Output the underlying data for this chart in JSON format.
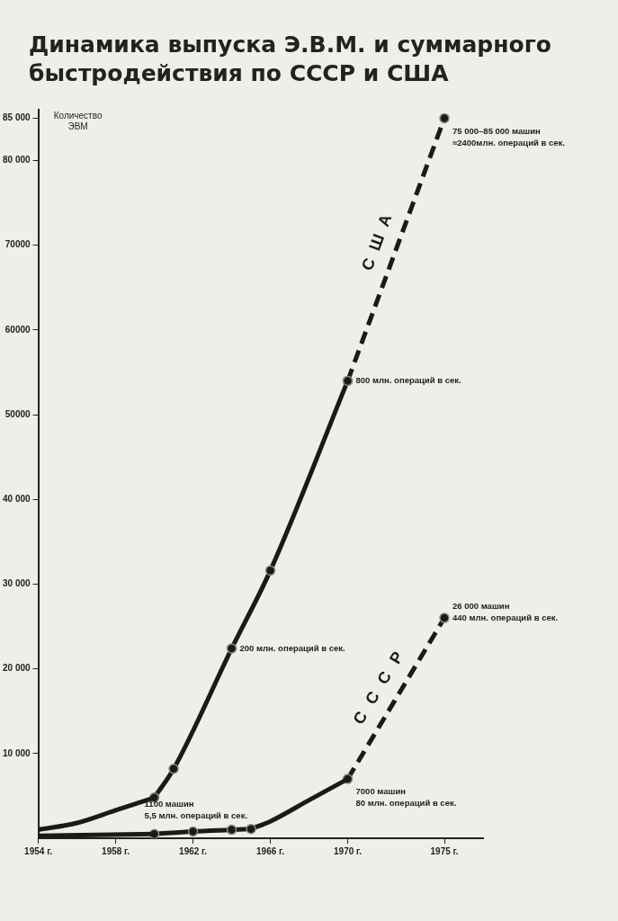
{
  "chart_data": {
    "type": "line",
    "title": "Динамика выпуска Э.В.М. и суммарного быстродействия по СССР и США",
    "ylabel": "Количество ЭВМ",
    "xlim": [
      1954,
      1977
    ],
    "ylim": [
      0,
      86000
    ],
    "xticks": [
      {
        "value": 1954,
        "label": "1954 г."
      },
      {
        "value": 1958,
        "label": "1958 г."
      },
      {
        "value": 1962,
        "label": "1962 г."
      },
      {
        "value": 1966,
        "label": "1966 г."
      },
      {
        "value": 1970,
        "label": "1970 г."
      },
      {
        "value": 1975,
        "label": "1975 г."
      }
    ],
    "yticks": [
      {
        "value": 10000,
        "label": "10 000"
      },
      {
        "value": 20000,
        "label": "20 000"
      },
      {
        "value": 30000,
        "label": "30 000"
      },
      {
        "value": 40000,
        "label": "40 000"
      },
      {
        "value": 50000,
        "label": "50000"
      },
      {
        "value": 60000,
        "label": "60000"
      },
      {
        "value": 70000,
        "label": "70000"
      },
      {
        "value": 80000,
        "label": "80 000"
      },
      {
        "value": 85000,
        "label": "85 000"
      }
    ],
    "grid": false,
    "legend": false,
    "series": [
      {
        "color": "#1a1a1a",
        "x": [
          1954,
          1956,
          1958,
          1960
        ],
        "values": [
          1000,
          1800,
          3300,
          4800
        ],
        "marker": "none",
        "line_style": "solid"
      },
      {
        "color": "#1a1a1a",
        "x": [
          1960,
          1961,
          1964,
          1966,
          1970
        ],
        "values": [
          4800,
          8200,
          22400,
          31600,
          54000
        ],
        "marker": "circle",
        "line_style": "solid"
      },
      {
        "name": "США",
        "color": "#1a1a1a",
        "x": [
          1970,
          1975
        ],
        "values": [
          54000,
          85000
        ],
        "marker": "circle",
        "line_style": "dashed"
      },
      {
        "color": "#1a1a1a",
        "x": [
          1954,
          1957,
          1960
        ],
        "values": [
          300,
          400,
          500
        ],
        "marker": "none",
        "line_style": "solid"
      },
      {
        "color": "#1a1a1a",
        "x": [
          1960,
          1962,
          1964,
          1965
        ],
        "values": [
          500,
          800,
          1000,
          1100
        ],
        "marker": "circle",
        "line_style": "solid"
      },
      {
        "color": "#1a1a1a",
        "x": [
          1965,
          1966,
          1968,
          1970
        ],
        "values": [
          1100,
          2000,
          4500,
          7000
        ],
        "marker": "none",
        "line_style": "solid"
      },
      {
        "name": "СССР",
        "color": "#1a1a1a",
        "x": [
          1970,
          1975
        ],
        "values": [
          7000,
          26000
        ],
        "marker": "circle",
        "line_style": "dashed"
      }
    ],
    "annotations": [
      {
        "text": "200 млн. операций в сек.",
        "x": 1964,
        "y": 22400
      },
      {
        "text": "800 млн. операций в сек.",
        "x": 1970,
        "y": 54000
      },
      {
        "text": "75 000–85 000 машин\n≈2400млн. операций в сек.",
        "x": 1975,
        "y": 85000
      },
      {
        "text": "26 000 машин\n440 млн. операций в сек.",
        "x": 1975,
        "y": 26000
      },
      {
        "text": "7000 машин\n80 млн. операций в сек.",
        "x": 1970,
        "y": 7000
      },
      {
        "text": "1100 машин\n5,5 млн. операций в сек.",
        "x": 1965,
        "y": 1100
      }
    ]
  }
}
